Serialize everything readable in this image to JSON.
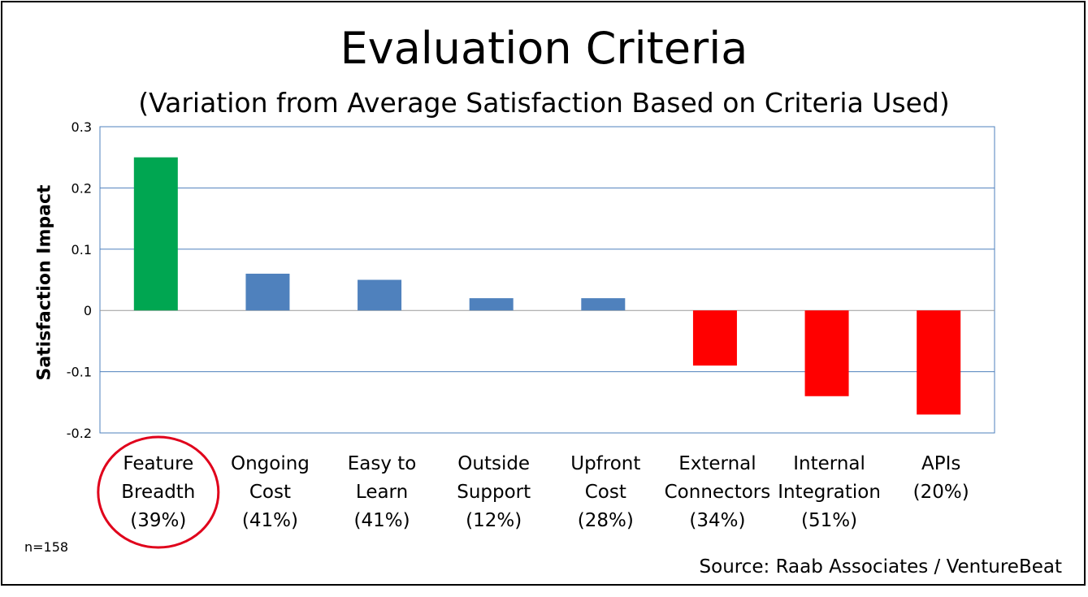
{
  "chart_data": {
    "type": "bar",
    "title": "Evaluation Criteria",
    "subtitle": "(Variation from Average Satisfaction Based on Criteria Used)",
    "ylabel": "Satisfaction  Impact",
    "xlabel": "",
    "ylim": [
      -0.2,
      0.3
    ],
    "yticks": [
      "0.3",
      "0.2",
      "0.1",
      "0",
      "-0.1",
      "-0.2"
    ],
    "ytick_values": [
      0.3,
      0.2,
      0.1,
      0,
      -0.1,
      -0.2
    ],
    "grid": true,
    "categories": [
      [
        "Feature",
        "Breadth",
        "(39%)"
      ],
      [
        "Ongoing",
        "Cost",
        "(41%)"
      ],
      [
        "Easy to",
        "Learn",
        "(41%)"
      ],
      [
        "Outside",
        "Support",
        "(12%)"
      ],
      [
        "Upfront",
        "Cost",
        "(28%)"
      ],
      [
        "External",
        "Connectors",
        "(34%)"
      ],
      [
        "Internal",
        "Integration",
        "(51%)"
      ],
      [
        "APIs",
        "(20%)"
      ]
    ],
    "values": [
      0.25,
      0.06,
      0.05,
      0.02,
      0.02,
      -0.09,
      -0.14,
      -0.17
    ],
    "bar_colors": [
      "#00a651",
      "#4f81bd",
      "#4f81bd",
      "#4f81bd",
      "#4f81bd",
      "#ff0000",
      "#ff0000",
      "#ff0000"
    ],
    "highlighted_category_index": 0,
    "highlight_color": "#e0001b",
    "grid_color": "#4f81bd"
  },
  "note": "n=158",
  "source": "Source:  Raab Associates / VentureBeat"
}
